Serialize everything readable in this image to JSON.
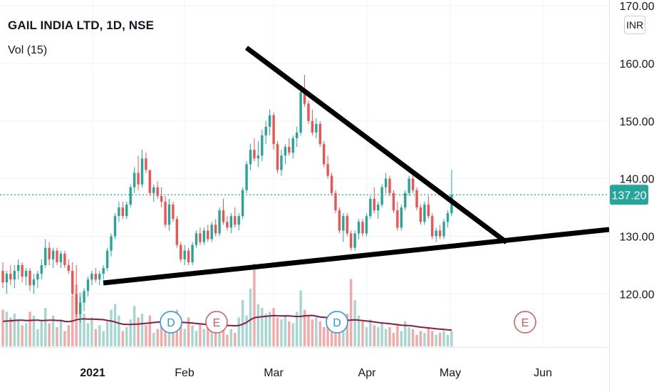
{
  "header": {
    "symbol_title": "GAIL INDIA LTD, 1D, NSE",
    "indicator_label": "Vol (15)",
    "currency_button": "INR"
  },
  "colors": {
    "up": "#26a69a",
    "down": "#ef5350",
    "up_volume": "#a5d6cf",
    "down_volume": "#f4a9a7",
    "volume_ma": "#8b1a4a",
    "price_line": "#26a69a",
    "trendline": "#000000",
    "event_dividend": "#2196f3",
    "event_earnings": "#e0545d"
  },
  "chart_data": {
    "type": "candlestick",
    "title": "GAIL INDIA LTD, 1D, NSE",
    "ylabel": "INR",
    "ylim": [
      113.0,
      170.0
    ],
    "grid": true,
    "y_ticks": [
      "170.00",
      "160.00",
      "150.00",
      "140.00",
      "130.00",
      "120.00"
    ],
    "x_ticks": [
      "2021",
      "Feb",
      "Mar",
      "Apr",
      "May",
      "Jun"
    ],
    "last_price": "137.20",
    "series": [
      {
        "name": "Price",
        "ohlc": [
          [
            124.0,
            125.5,
            121.0,
            122.0
          ],
          [
            122.0,
            124.0,
            120.0,
            123.5
          ],
          [
            123.5,
            125.0,
            121.5,
            122.5
          ],
          [
            122.5,
            125.0,
            121.0,
            124.0
          ],
          [
            124.0,
            126.0,
            122.5,
            125.0
          ],
          [
            125.0,
            125.5,
            122.0,
            123.0
          ],
          [
            123.0,
            124.5,
            121.5,
            124.0
          ],
          [
            124.0,
            124.5,
            120.5,
            121.5
          ],
          [
            121.5,
            123.5,
            120.0,
            122.5
          ],
          [
            122.5,
            124.0,
            121.0,
            123.5
          ],
          [
            123.5,
            126.0,
            122.5,
            125.0
          ],
          [
            125.0,
            129.5,
            124.5,
            128.0
          ],
          [
            128.0,
            129.0,
            125.0,
            126.0
          ],
          [
            126.0,
            128.0,
            124.5,
            127.5
          ],
          [
            127.5,
            128.0,
            125.0,
            125.5
          ],
          [
            125.5,
            127.5,
            124.5,
            127.0
          ],
          [
            127.0,
            127.5,
            124.5,
            125.0
          ],
          [
            125.0,
            126.0,
            123.5,
            124.0
          ],
          [
            124.0,
            125.5,
            119.5,
            120.0
          ],
          [
            120.0,
            125.0,
            116.0,
            116.5
          ],
          [
            116.5,
            119.5,
            115.0,
            118.5
          ],
          [
            118.5,
            121.0,
            117.0,
            120.5
          ],
          [
            120.5,
            123.0,
            119.5,
            122.5
          ],
          [
            122.5,
            124.0,
            121.5,
            123.5
          ],
          [
            123.5,
            124.5,
            122.0,
            122.5
          ],
          [
            122.5,
            124.0,
            121.5,
            123.5
          ],
          [
            123.5,
            125.0,
            122.5,
            124.5
          ],
          [
            124.5,
            128.0,
            124.0,
            127.5
          ],
          [
            127.5,
            130.5,
            126.5,
            130.0
          ],
          [
            130.0,
            134.0,
            129.5,
            133.5
          ],
          [
            133.5,
            136.0,
            132.5,
            135.0
          ],
          [
            135.0,
            136.0,
            133.0,
            133.5
          ],
          [
            133.5,
            136.0,
            133.0,
            135.5
          ],
          [
            135.5,
            139.0,
            135.0,
            138.5
          ],
          [
            138.5,
            142.0,
            137.5,
            141.0
          ],
          [
            141.0,
            144.0,
            138.0,
            139.0
          ],
          [
            139.0,
            145.0,
            138.5,
            143.5
          ],
          [
            143.5,
            144.5,
            141.0,
            141.5
          ],
          [
            141.5,
            141.5,
            137.0,
            137.5
          ],
          [
            137.5,
            139.0,
            136.0,
            138.5
          ],
          [
            138.5,
            139.5,
            136.5,
            137.0
          ],
          [
            137.0,
            138.5,
            135.0,
            136.0
          ],
          [
            136.0,
            137.0,
            131.5,
            132.0
          ],
          [
            132.0,
            136.5,
            131.0,
            135.5
          ],
          [
            135.5,
            136.0,
            132.5,
            133.0
          ],
          [
            133.0,
            133.5,
            128.0,
            128.5
          ],
          [
            128.5,
            129.0,
            125.5,
            126.0
          ],
          [
            126.0,
            128.5,
            125.0,
            127.5
          ],
          [
            127.5,
            128.0,
            125.0,
            125.5
          ],
          [
            125.5,
            129.0,
            125.0,
            128.5
          ],
          [
            128.5,
            131.0,
            128.0,
            130.5
          ],
          [
            130.5,
            131.5,
            128.5,
            129.0
          ],
          [
            129.0,
            131.5,
            128.5,
            131.0
          ],
          [
            131.0,
            132.0,
            129.0,
            129.5
          ],
          [
            129.5,
            132.5,
            129.0,
            132.0
          ],
          [
            132.0,
            133.0,
            130.0,
            130.5
          ],
          [
            130.5,
            135.0,
            130.0,
            134.5
          ],
          [
            134.5,
            136.5,
            132.0,
            132.5
          ],
          [
            132.5,
            133.5,
            131.0,
            131.5
          ],
          [
            131.5,
            134.0,
            130.5,
            133.5
          ],
          [
            133.5,
            135.0,
            131.5,
            132.0
          ],
          [
            132.0,
            134.0,
            131.0,
            133.5
          ],
          [
            133.5,
            138.5,
            133.0,
            138.0
          ],
          [
            138.0,
            143.0,
            137.5,
            142.5
          ],
          [
            142.5,
            146.0,
            141.5,
            145.0
          ],
          [
            145.0,
            147.0,
            143.0,
            143.5
          ],
          [
            143.5,
            146.5,
            142.0,
            144.0
          ],
          [
            144.0,
            148.5,
            143.0,
            147.5
          ],
          [
            147.5,
            150.0,
            146.0,
            149.0
          ],
          [
            149.0,
            152.0,
            147.5,
            151.0
          ],
          [
            151.0,
            151.5,
            145.0,
            146.0
          ],
          [
            146.0,
            146.5,
            141.0,
            141.5
          ],
          [
            141.5,
            145.0,
            140.5,
            144.0
          ],
          [
            144.0,
            146.0,
            142.5,
            145.5
          ],
          [
            145.5,
            147.0,
            144.0,
            144.5
          ],
          [
            144.5,
            147.5,
            143.5,
            147.0
          ],
          [
            147.0,
            149.0,
            145.5,
            148.0
          ],
          [
            148.0,
            156.0,
            147.5,
            155.0
          ],
          [
            155.0,
            158.0,
            152.5,
            153.0
          ],
          [
            153.0,
            153.5,
            149.5,
            150.0
          ],
          [
            150.0,
            152.0,
            147.5,
            148.0
          ],
          [
            148.0,
            150.5,
            147.0,
            149.5
          ],
          [
            149.5,
            150.0,
            145.5,
            146.0
          ],
          [
            146.0,
            146.5,
            142.0,
            142.5
          ],
          [
            142.5,
            144.0,
            140.0,
            140.5
          ],
          [
            140.5,
            141.0,
            137.0,
            137.5
          ],
          [
            137.5,
            138.0,
            134.0,
            134.5
          ],
          [
            134.5,
            135.0,
            130.5,
            131.0
          ],
          [
            131.0,
            134.0,
            129.0,
            133.5
          ],
          [
            133.5,
            134.0,
            130.0,
            130.5
          ],
          [
            130.5,
            131.0,
            127.5,
            128.0
          ],
          [
            128.0,
            131.0,
            127.5,
            130.5
          ],
          [
            130.5,
            133.0,
            129.5,
            132.5
          ],
          [
            132.5,
            133.0,
            130.0,
            130.5
          ],
          [
            130.5,
            134.0,
            130.0,
            133.5
          ],
          [
            133.5,
            137.0,
            133.0,
            136.5
          ],
          [
            136.5,
            138.5,
            134.0,
            134.5
          ],
          [
            134.5,
            136.0,
            133.0,
            135.5
          ],
          [
            135.5,
            139.0,
            135.0,
            138.5
          ],
          [
            138.5,
            141.0,
            137.5,
            140.0
          ],
          [
            140.0,
            140.5,
            137.0,
            137.5
          ],
          [
            137.5,
            138.0,
            134.0,
            134.5
          ],
          [
            134.5,
            136.0,
            131.0,
            131.5
          ],
          [
            131.5,
            135.5,
            131.0,
            135.0
          ],
          [
            135.0,
            138.0,
            134.5,
            137.5
          ],
          [
            137.5,
            140.5,
            137.0,
            140.0
          ],
          [
            140.0,
            141.0,
            137.5,
            138.0
          ],
          [
            138.0,
            138.5,
            134.5,
            135.0
          ],
          [
            135.0,
            135.5,
            132.0,
            132.5
          ],
          [
            132.5,
            136.0,
            132.0,
            135.5
          ],
          [
            135.5,
            137.0,
            133.0,
            133.5
          ],
          [
            133.5,
            134.0,
            129.5,
            130.0
          ],
          [
            130.0,
            131.5,
            129.0,
            131.0
          ],
          [
            131.0,
            132.0,
            129.5,
            130.0
          ],
          [
            130.0,
            133.0,
            129.5,
            132.5
          ],
          [
            132.5,
            134.5,
            131.5,
            134.0
          ],
          [
            134.0,
            141.5,
            133.5,
            137.2
          ]
        ]
      },
      {
        "name": "Vol (15)",
        "volume": [
          1.9,
          1.8,
          1.5,
          1.7,
          1.4,
          1.1,
          1.2,
          1.8,
          1.6,
          0.9,
          1.3,
          2.0,
          1.2,
          1.6,
          1.0,
          1.4,
          0.8,
          1.1,
          2.6,
          3.2,
          2.8,
          1.7,
          1.2,
          1.5,
          0.9,
          1.1,
          0.8,
          1.3,
          1.9,
          2.2,
          1.6,
          0.8,
          1.0,
          1.4,
          2.1,
          1.5,
          1.7,
          1.1,
          1.6,
          0.7,
          0.9,
          1.3,
          1.4,
          1.0,
          0.8,
          1.9,
          1.2,
          0.9,
          1.5,
          1.1,
          0.8,
          1.2,
          0.9,
          1.4,
          1.0,
          0.7,
          0.8,
          1.1,
          0.6,
          0.9,
          0.7,
          1.5,
          2.4,
          1.6,
          3.0,
          4.3,
          2.2,
          2.0,
          1.7,
          1.8,
          2.0,
          1.5,
          1.4,
          1.6,
          1.3,
          1.2,
          1.8,
          2.9,
          1.9,
          1.6,
          1.4,
          1.5,
          1.3,
          1.0,
          1.3,
          0.8,
          1.2,
          0.9,
          1.4,
          1.7,
          3.5,
          2.4,
          1.6,
          1.3,
          1.0,
          1.4,
          1.1,
          1.0,
          1.2,
          0.9,
          1.0,
          0.7,
          1.1,
          0.8,
          1.3,
          1.0,
          0.9,
          0.6,
          0.8,
          0.7,
          1.0,
          0.8,
          0.6,
          0.7,
          0.8,
          0.6,
          0.8
        ],
        "ma": [
          1.3,
          1.32,
          1.33,
          1.35,
          1.36,
          1.36,
          1.34,
          1.35,
          1.36,
          1.36,
          1.34,
          1.35,
          1.36,
          1.36,
          1.35,
          1.34,
          1.3,
          1.28,
          1.32,
          1.38,
          1.42,
          1.43,
          1.42,
          1.42,
          1.41,
          1.4,
          1.39,
          1.35,
          1.32,
          1.27,
          1.2,
          1.15,
          1.14,
          1.14,
          1.15,
          1.16,
          1.18,
          1.2,
          1.22,
          1.24,
          1.26,
          1.27,
          1.28,
          1.28,
          1.27,
          1.26,
          1.25,
          1.24,
          1.23,
          1.21,
          1.19,
          1.17,
          1.15,
          1.13,
          1.11,
          1.1,
          1.09,
          1.09,
          1.08,
          1.08,
          1.07,
          1.09,
          1.15,
          1.25,
          1.38,
          1.49,
          1.52,
          1.54,
          1.56,
          1.58,
          1.6,
          1.59,
          1.58,
          1.59,
          1.58,
          1.57,
          1.55,
          1.56,
          1.58,
          1.6,
          1.61,
          1.57,
          1.53,
          1.51,
          1.49,
          1.45,
          1.41,
          1.38,
          1.36,
          1.35,
          1.37,
          1.38,
          1.36,
          1.34,
          1.32,
          1.3,
          1.27,
          1.24,
          1.22,
          1.2,
          1.18,
          1.15,
          1.13,
          1.1,
          1.09,
          1.08,
          1.06,
          1.03,
          1.0,
          0.98,
          0.96,
          0.94,
          0.92,
          0.9,
          0.88,
          0.86,
          0.85
        ]
      }
    ],
    "events": [
      {
        "letter": "D"
      },
      {
        "letter": "E"
      },
      {
        "letter": "D"
      },
      {
        "letter": "E"
      }
    ]
  }
}
